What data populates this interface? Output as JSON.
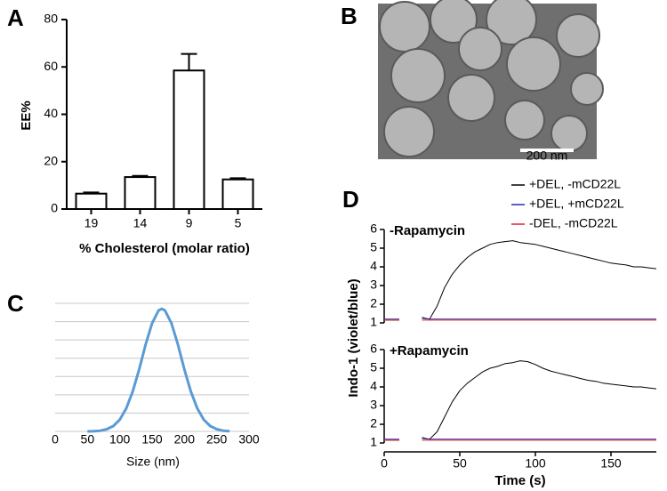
{
  "chart_data": [
    {
      "type": "bar",
      "label": "A",
      "ylabel": "EE%",
      "xlabel": "% Cholesterol (molar ratio)",
      "categories": [
        "19",
        "14",
        "9",
        "5"
      ],
      "values": [
        6.5,
        13.5,
        58.5,
        12.5
      ],
      "errors": [
        0.5,
        0.5,
        7,
        0.5
      ],
      "color": "#ffffff",
      "ylim": [
        0,
        80
      ],
      "yticks": [
        0,
        20,
        40,
        60,
        80
      ]
    },
    {
      "type": "image",
      "label": "B",
      "scale_bar": "200 nm"
    },
    {
      "type": "line",
      "label": "C",
      "xlabel": "Size (nm)",
      "color": "#5b9bd5",
      "x": [
        50,
        60,
        70,
        80,
        90,
        100,
        110,
        120,
        130,
        140,
        150,
        160,
        165,
        170,
        180,
        190,
        200,
        210,
        220,
        230,
        240,
        250,
        260,
        270
      ],
      "values": [
        0.0,
        0.01,
        0.04,
        0.12,
        0.29,
        0.64,
        1.25,
        2.18,
        3.39,
        4.74,
        5.91,
        6.61,
        6.7,
        6.61,
        5.91,
        4.74,
        3.39,
        2.18,
        1.25,
        0.64,
        0.29,
        0.12,
        0.04,
        0.01
      ],
      "xlim": [
        0,
        300
      ],
      "xticks": [
        0,
        50,
        100,
        150,
        200,
        250,
        300
      ],
      "ylim": [
        0,
        7
      ],
      "yticks": [
        0,
        1,
        2,
        3,
        4,
        5,
        6,
        7
      ],
      "ytick_labels": false,
      "grid": true
    },
    {
      "type": "line",
      "label": "D",
      "ylabel": "Indo-1 (violet/blue)",
      "xlabel": "Time (s)",
      "legend": [
        {
          "name": "+DEL, -mCD22L",
          "color": "#000000"
        },
        {
          "name": "+DEL, +mCD22L",
          "color": "#2b2bb0"
        },
        {
          "name": "-DEL, -mCD22L",
          "color": "#e0202a"
        }
      ],
      "x": [
        0,
        5,
        10,
        15,
        20,
        25,
        30,
        35,
        40,
        45,
        50,
        55,
        60,
        65,
        70,
        75,
        80,
        85,
        90,
        95,
        100,
        105,
        110,
        115,
        120,
        125,
        130,
        135,
        140,
        145,
        150,
        155,
        160,
        165,
        170,
        175,
        180
      ],
      "xlim": [
        0,
        180
      ],
      "xticks": [
        0,
        50,
        100,
        150
      ],
      "ylim": [
        1,
        6
      ],
      "yticks": [
        1,
        2,
        3,
        4,
        5,
        6
      ],
      "panels": [
        {
          "title": "-Rapamycin",
          "series": [
            {
              "values": [
                1.15,
                1.15,
                1.15,
                null,
                null,
                1.25,
                1.2,
                1.9,
                2.9,
                3.6,
                4.1,
                4.5,
                4.8,
                5.0,
                5.2,
                5.3,
                5.35,
                5.4,
                5.3,
                5.25,
                5.2,
                5.1,
                5.0,
                4.9,
                4.8,
                4.7,
                4.6,
                4.5,
                4.4,
                4.3,
                4.2,
                4.15,
                4.1,
                4.0,
                4.0,
                3.95,
                3.9
              ]
            },
            {
              "values": [
                1.2,
                1.2,
                1.2,
                null,
                null,
                1.3,
                1.2,
                1.2,
                1.2,
                1.2,
                1.2,
                1.2,
                1.2,
                1.2,
                1.2,
                1.2,
                1.2,
                1.2,
                1.2,
                1.2,
                1.2,
                1.2,
                1.2,
                1.2,
                1.2,
                1.2,
                1.2,
                1.2,
                1.2,
                1.2,
                1.2,
                1.2,
                1.2,
                1.2,
                1.2,
                1.2,
                1.2
              ]
            },
            {
              "values": [
                1.15,
                1.15,
                1.15,
                null,
                null,
                1.15,
                1.15,
                1.15,
                1.15,
                1.15,
                1.15,
                1.15,
                1.15,
                1.15,
                1.15,
                1.15,
                1.15,
                1.15,
                1.15,
                1.15,
                1.15,
                1.15,
                1.15,
                1.15,
                1.15,
                1.15,
                1.15,
                1.15,
                1.15,
                1.15,
                1.15,
                1.15,
                1.15,
                1.15,
                1.15,
                1.15,
                1.15
              ]
            }
          ]
        },
        {
          "title": "+Rapamycin",
          "series": [
            {
              "values": [
                1.15,
                1.15,
                1.15,
                null,
                null,
                1.25,
                1.2,
                1.6,
                2.4,
                3.2,
                3.8,
                4.2,
                4.5,
                4.8,
                5.0,
                5.1,
                5.25,
                5.3,
                5.4,
                5.35,
                5.2,
                5.0,
                4.85,
                4.75,
                4.65,
                4.55,
                4.45,
                4.35,
                4.3,
                4.2,
                4.15,
                4.1,
                4.05,
                4.0,
                4.0,
                3.95,
                3.9
              ]
            },
            {
              "values": [
                1.2,
                1.2,
                1.2,
                null,
                null,
                1.3,
                1.2,
                1.2,
                1.2,
                1.2,
                1.2,
                1.2,
                1.2,
                1.2,
                1.2,
                1.2,
                1.2,
                1.2,
                1.2,
                1.2,
                1.2,
                1.2,
                1.2,
                1.2,
                1.2,
                1.2,
                1.2,
                1.2,
                1.2,
                1.2,
                1.2,
                1.2,
                1.2,
                1.2,
                1.2,
                1.2,
                1.2
              ]
            },
            {
              "values": [
                1.15,
                1.15,
                1.15,
                null,
                null,
                1.15,
                1.15,
                1.15,
                1.15,
                1.15,
                1.15,
                1.15,
                1.15,
                1.15,
                1.15,
                1.15,
                1.15,
                1.15,
                1.15,
                1.15,
                1.15,
                1.15,
                1.15,
                1.15,
                1.15,
                1.15,
                1.15,
                1.15,
                1.15,
                1.15,
                1.15,
                1.15,
                1.15,
                1.15,
                1.15,
                1.15,
                1.15
              ]
            }
          ]
        }
      ]
    }
  ]
}
